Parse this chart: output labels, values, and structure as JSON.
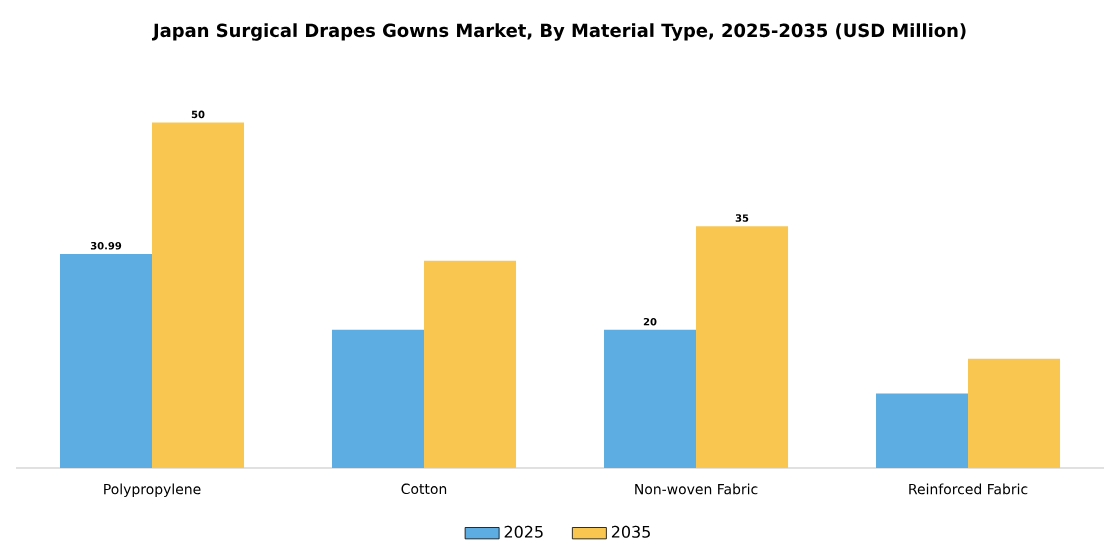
{
  "chart_data": {
    "type": "bar",
    "title": "Japan Surgical Drapes Gowns Market, By Material Type, 2025-2035 (USD Million)",
    "categories": [
      "Polypropylene",
      "Cotton",
      "Non-woven Fabric",
      "Reinforced Fabric"
    ],
    "series": [
      {
        "name": "2025",
        "color": "#5dade2",
        "values": [
          30.99,
          20,
          20,
          10.8
        ],
        "value_labels": [
          "30.99",
          null,
          "20",
          null
        ]
      },
      {
        "name": "2035",
        "color": "#f9c74f",
        "values": [
          50,
          30,
          35,
          15.8
        ],
        "value_labels": [
          "50",
          null,
          "35",
          null
        ]
      }
    ],
    "legend": "bottom"
  }
}
